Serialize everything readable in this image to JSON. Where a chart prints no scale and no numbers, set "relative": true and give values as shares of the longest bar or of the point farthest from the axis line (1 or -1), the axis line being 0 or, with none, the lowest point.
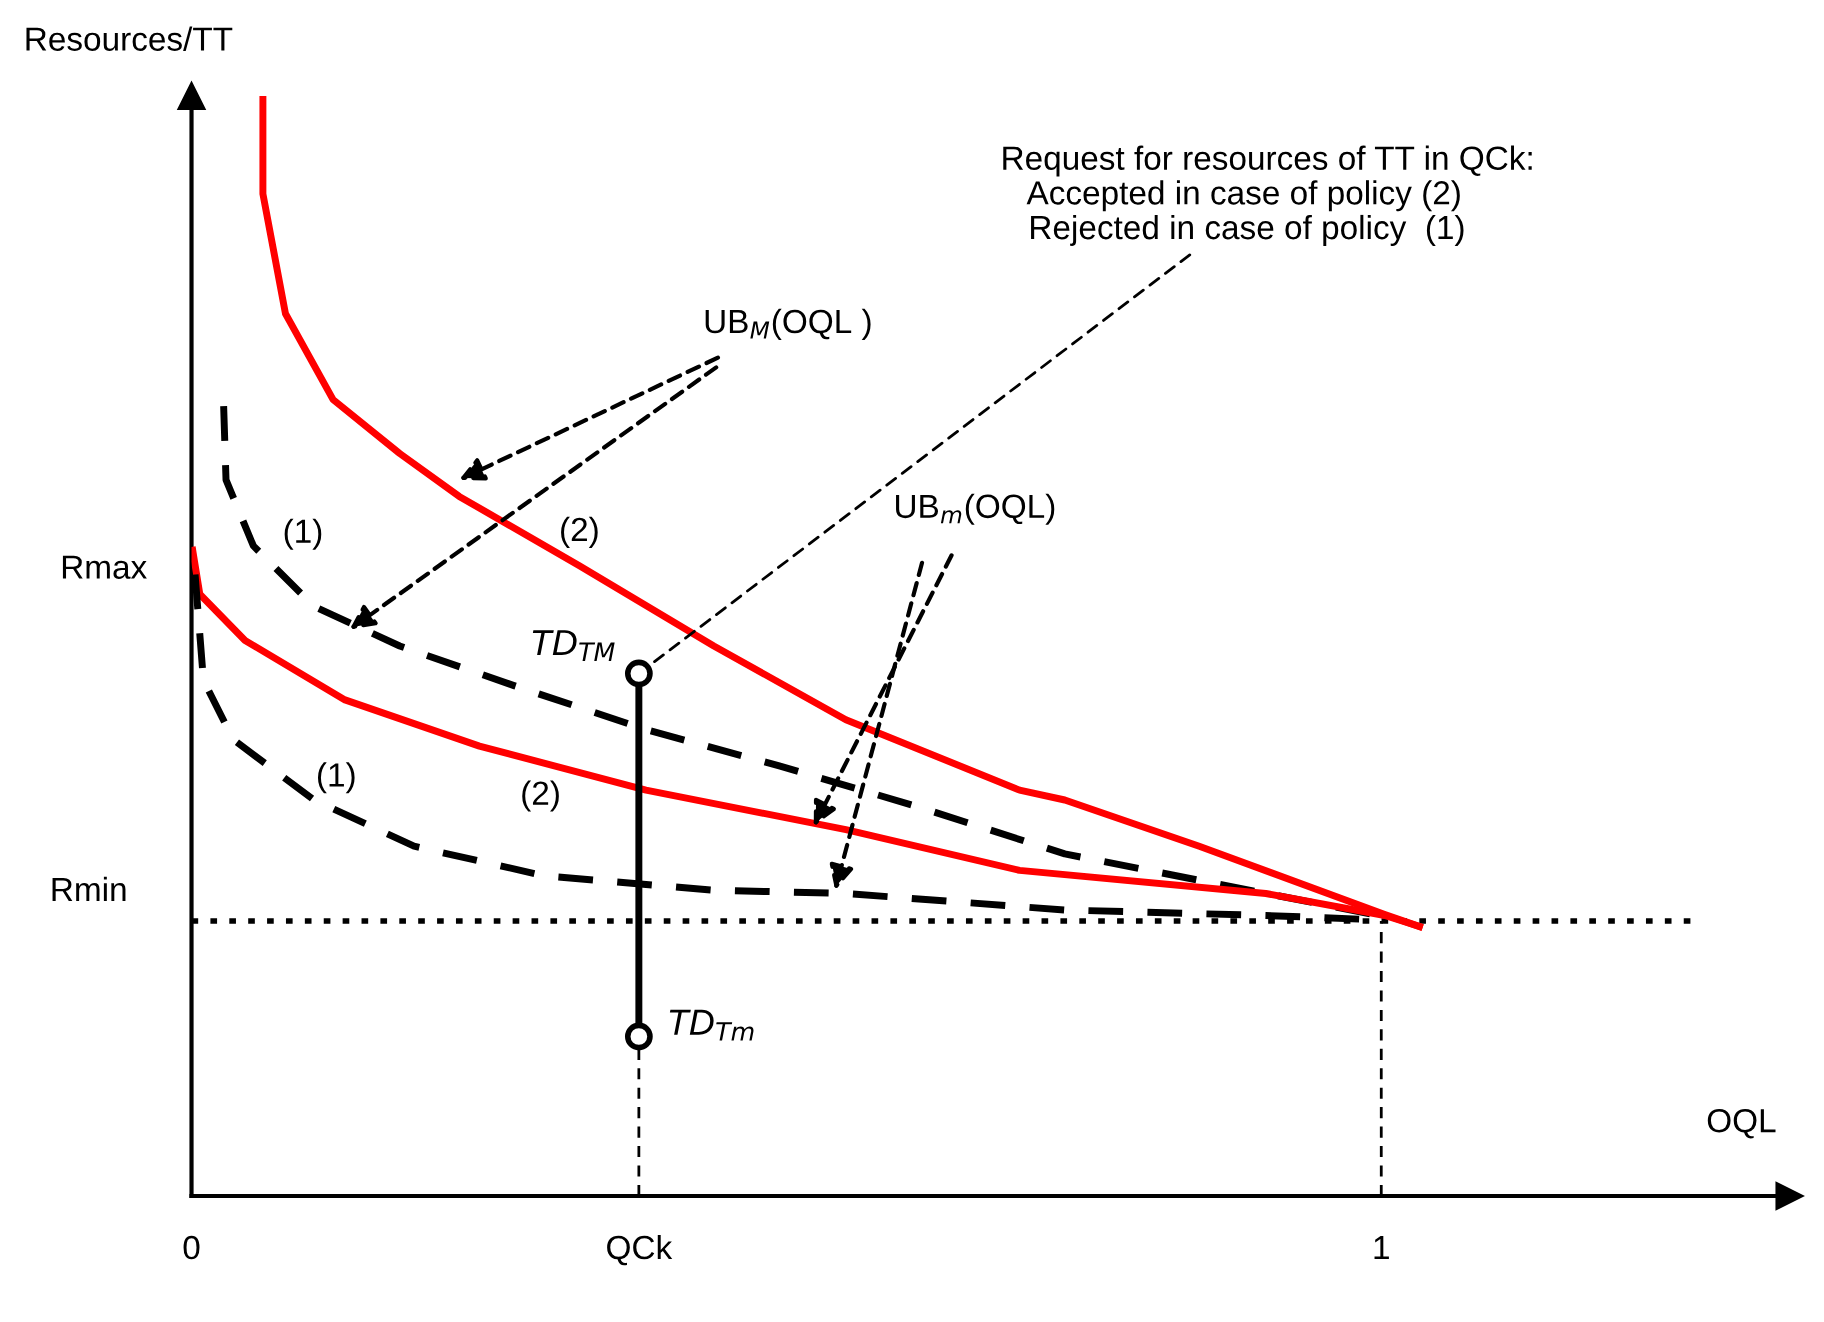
{
  "chart_data": {
    "type": "line",
    "relative": true,
    "xlabel": "OQL",
    "ylabel": "Resources/TT",
    "xlim": [
      0,
      1.343
    ],
    "xticks": [
      0,
      {
        "value": 0.376,
        "label": "QCk"
      },
      1
    ],
    "series": [
      {
        "name": "(2)",
        "color": "#ff0000",
        "line_style": "solid",
        "marker": "none",
        "x": [
          0.06,
          0.06,
          0.079,
          0.119,
          0.175,
          0.225,
          0.326,
          0.439,
          0.55,
          0.696,
          0.734,
          0.847,
          1.003,
          1.032
        ],
        "values": [
          1.0,
          0.911,
          0.802,
          0.724,
          0.675,
          0.636,
          0.573,
          0.5,
          0.433,
          0.369,
          0.36,
          0.318,
          0.256,
          0.245
        ]
      },
      {
        "name": "(1)",
        "color": "#000000",
        "line_style": "dashed",
        "marker": "none",
        "x": [
          0.027,
          0.029,
          0.052,
          0.103,
          0.175,
          0.271,
          0.382,
          0.494,
          0.607,
          0.734,
          0.847,
          0.998
        ],
        "values": [
          0.718,
          0.651,
          0.591,
          0.536,
          0.5,
          0.464,
          0.424,
          0.391,
          0.355,
          0.311,
          0.287,
          0.255
        ]
      },
      {
        "name": "(2)",
        "color": "#ff0000",
        "line_style": "solid",
        "marker": "none",
        "x": [
          0.001,
          0.007,
          0.045,
          0.129,
          0.242,
          0.382,
          0.55,
          0.696,
          0.903,
          1.003,
          1.032
        ],
        "values": [
          0.587,
          0.547,
          0.505,
          0.451,
          0.409,
          0.369,
          0.333,
          0.296,
          0.275,
          0.255,
          0.245
        ]
      },
      {
        "name": "(1)",
        "color": "#000000",
        "line_style": "dashed",
        "marker": "none",
        "x": [
          0.003,
          0.01,
          0.035,
          0.103,
          0.187,
          0.297,
          0.439,
          0.55,
          0.734,
          0.903,
          0.998
        ],
        "values": [
          0.565,
          0.469,
          0.415,
          0.36,
          0.318,
          0.291,
          0.278,
          0.275,
          0.26,
          0.255,
          0.251
        ]
      },
      {
        "color": "#000000",
        "line_style": "solid",
        "marker": "circle",
        "x": [
          0.376,
          0.376
        ],
        "values": [
          0.145,
          0.475
        ]
      }
    ],
    "ref_lines": [
      {
        "axis": "y",
        "value": 0.25,
        "label": "Rmin",
        "line_style": "dotted",
        "color": "#000000"
      },
      {
        "axis": "x",
        "value": 0.376,
        "line_style": "dashed",
        "color": "#000000"
      },
      {
        "axis": "x",
        "value": 1,
        "line_style": "dashed",
        "color": "#000000"
      }
    ],
    "annotations": [
      {
        "text": "UB$_{M}$(OQL )",
        "x": 0.225,
        "y": 0.651
      },
      {
        "text": "UB$_{m}$(OQL)",
        "x": 0.523,
        "y": 0.336
      },
      {
        "text": "Request for resources of TT in QCk:\n   Accepted in case of policy (2)\n   Rejected in case of policy  (1)",
        "x": 0.376,
        "y": 0.475
      },
      {
        "text": "TD$_{TM}$",
        "x": 0.376,
        "y": 0.475
      },
      {
        "text": "TD$_{Tm}$",
        "x": 0.376,
        "y": 0.145
      },
      "Rmax"
    ]
  }
}
